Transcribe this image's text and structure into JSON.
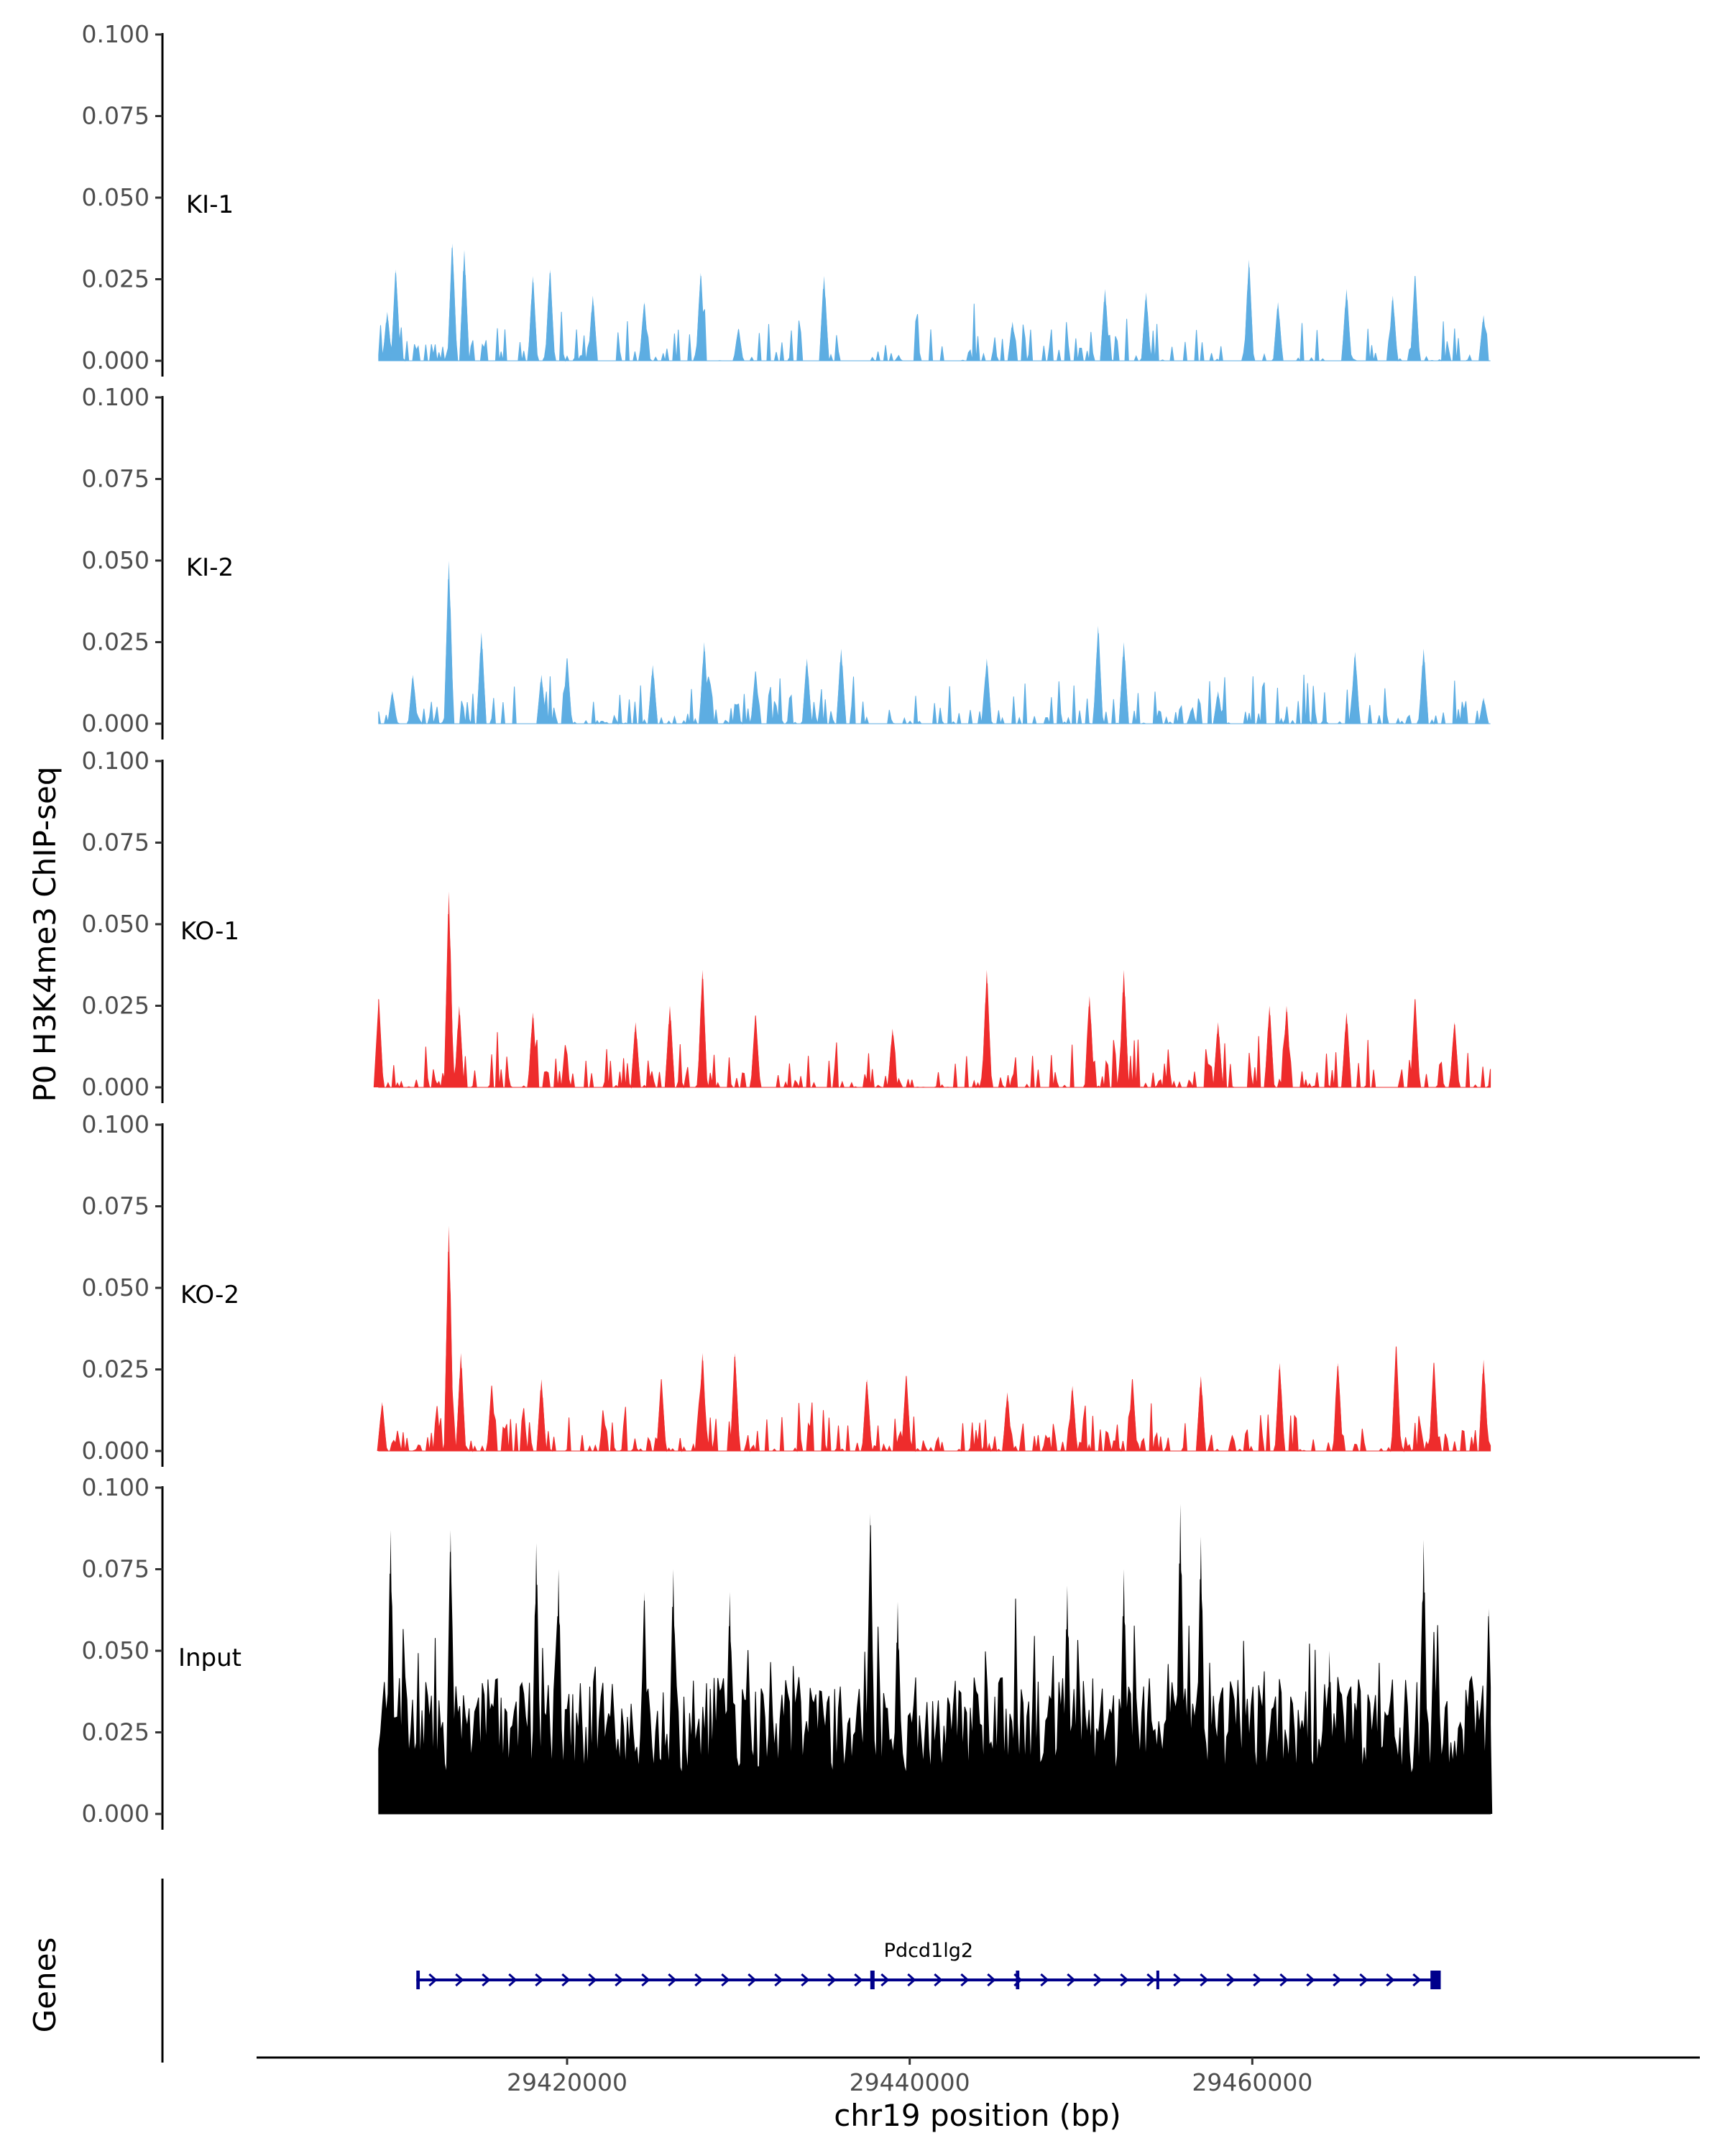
{
  "chart_data": {
    "type": "area",
    "ylabel": "P0 H3K4me3 ChIP-seq",
    "xlabel": "chr19 position (bp)",
    "x_range": [
      29409000,
      29474000
    ],
    "xlim": [
      29402000,
      29486000
    ],
    "x_ticks": [
      29420000,
      29440000,
      29460000
    ],
    "x_tick_labels": [
      "29420000",
      "29440000",
      "29460000"
    ],
    "ylim": [
      0,
      0.1
    ],
    "y_ticks": [
      0,
      0.025,
      0.05,
      0.075,
      0.1
    ],
    "y_tick_labels": [
      "0.000",
      "0.025",
      "0.050",
      "0.075",
      "0.100"
    ],
    "series": [
      {
        "name": "KI-1",
        "color": "#5dade2",
        "peaks": [
          [
            29409500,
            0.015
          ],
          [
            29410000,
            0.028
          ],
          [
            29413300,
            0.036
          ],
          [
            29414000,
            0.034
          ],
          [
            29418000,
            0.026
          ],
          [
            29419000,
            0.028
          ],
          [
            29421500,
            0.02
          ],
          [
            29424500,
            0.018
          ],
          [
            29427800,
            0.027
          ],
          [
            29430000,
            0.01
          ],
          [
            29435000,
            0.026
          ],
          [
            29446000,
            0.012
          ],
          [
            29451400,
            0.022
          ],
          [
            29453800,
            0.021
          ],
          [
            29459800,
            0.031
          ],
          [
            29461500,
            0.018
          ],
          [
            29465500,
            0.022
          ],
          [
            29468200,
            0.02
          ],
          [
            29469500,
            0.026
          ],
          [
            29473500,
            0.014
          ]
        ],
        "density": 0.55,
        "seed": 11
      },
      {
        "name": "KI-2",
        "color": "#5dade2",
        "peaks": [
          [
            29409800,
            0.01
          ],
          [
            29411000,
            0.015
          ],
          [
            29413100,
            0.05
          ],
          [
            29415000,
            0.028
          ],
          [
            29418500,
            0.015
          ],
          [
            29420000,
            0.02
          ],
          [
            29425000,
            0.018
          ],
          [
            29428000,
            0.025
          ],
          [
            29431000,
            0.016
          ],
          [
            29434000,
            0.02
          ],
          [
            29436000,
            0.023
          ],
          [
            29444500,
            0.02
          ],
          [
            29451000,
            0.03
          ],
          [
            29452500,
            0.025
          ],
          [
            29458000,
            0.01
          ],
          [
            29466000,
            0.022
          ],
          [
            29470000,
            0.023
          ],
          [
            29473500,
            0.008
          ]
        ],
        "density": 0.65,
        "seed": 23
      },
      {
        "name": "KO-1",
        "color": "#ee2c2c",
        "peaks": [
          [
            29409000,
            0.027
          ],
          [
            29413100,
            0.06
          ],
          [
            29413700,
            0.025
          ],
          [
            29418000,
            0.023
          ],
          [
            29424000,
            0.02
          ],
          [
            29426000,
            0.025
          ],
          [
            29427900,
            0.036
          ],
          [
            29431000,
            0.022
          ],
          [
            29439000,
            0.018
          ],
          [
            29444500,
            0.036
          ],
          [
            29450500,
            0.028
          ],
          [
            29452500,
            0.036
          ],
          [
            29458000,
            0.02
          ],
          [
            29461000,
            0.025
          ],
          [
            29462000,
            0.025
          ],
          [
            29465500,
            0.023
          ],
          [
            29469500,
            0.027
          ],
          [
            29471800,
            0.02
          ]
        ],
        "density": 0.7,
        "seed": 37
      },
      {
        "name": "KO-2",
        "color": "#ee2c2c",
        "peaks": [
          [
            29409200,
            0.015
          ],
          [
            29413100,
            0.069
          ],
          [
            29413800,
            0.03
          ],
          [
            29415600,
            0.02
          ],
          [
            29418500,
            0.022
          ],
          [
            29425500,
            0.022
          ],
          [
            29427900,
            0.03
          ],
          [
            29429800,
            0.03
          ],
          [
            29437500,
            0.022
          ],
          [
            29439800,
            0.023
          ],
          [
            29445700,
            0.018
          ],
          [
            29449500,
            0.02
          ],
          [
            29453000,
            0.022
          ],
          [
            29457000,
            0.023
          ],
          [
            29461600,
            0.027
          ],
          [
            29465000,
            0.027
          ],
          [
            29468400,
            0.032
          ],
          [
            29470600,
            0.027
          ],
          [
            29473500,
            0.028
          ]
        ],
        "density": 0.72,
        "seed": 53
      },
      {
        "name": "Input",
        "color": "#000000",
        "peaks": [
          [
            29409700,
            0.087
          ],
          [
            29413200,
            0.087
          ],
          [
            29418200,
            0.083
          ],
          [
            29419500,
            0.075
          ],
          [
            29424500,
            0.068
          ],
          [
            29426200,
            0.075
          ],
          [
            29429500,
            0.068
          ],
          [
            29437700,
            0.092
          ],
          [
            29439300,
            0.065
          ],
          [
            29449200,
            0.07
          ],
          [
            29452500,
            0.075
          ],
          [
            29455800,
            0.095
          ],
          [
            29457000,
            0.085
          ],
          [
            29464500,
            0.05
          ],
          [
            29470000,
            0.084
          ],
          [
            29473800,
            0.063
          ]
        ],
        "density": 1.0,
        "seed": 71
      }
    ],
    "gene_track": {
      "label": "Genes",
      "gene": "Pdcd1lg2",
      "strand": "+",
      "start": 29411200,
      "end": 29471000,
      "exons": [
        [
          29411200,
          29411400
        ],
        [
          29437700,
          29437950
        ],
        [
          29446200,
          29446400
        ],
        [
          29454400,
          29454500
        ],
        [
          29470400,
          29471000
        ]
      ],
      "color": "#00008b"
    }
  }
}
